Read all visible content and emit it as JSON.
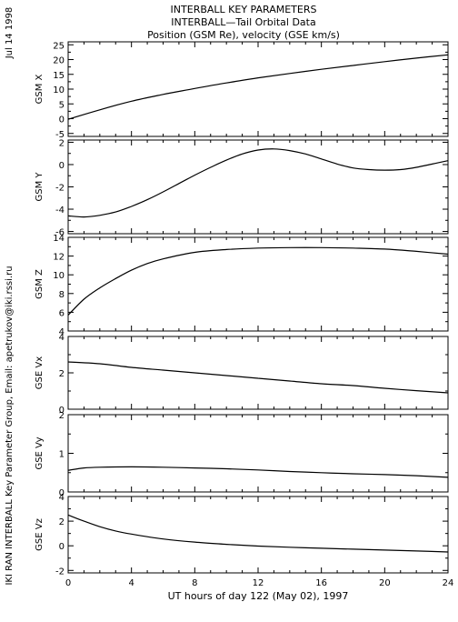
{
  "header": {
    "title": "INTERBALL KEY PARAMETERS",
    "subtitle": "INTERBALL—Tail Orbital Data",
    "subtitle2": "Position (GSM Re), velocity (GSE km/s)"
  },
  "side": {
    "date": "Jul 14 1998",
    "credit": "IKI RAN INTERBALL Key Parameter Group, Email: apetrukov@iki.rssi.ru"
  },
  "chart_data": {
    "type": "line",
    "xlabel": "UT hours of day 122 (May 02), 1997",
    "xlim": [
      0,
      24
    ],
    "xticks": [
      0,
      4,
      8,
      12,
      16,
      20,
      24
    ],
    "grid": false,
    "panels": [
      {
        "ylabel": "GSM X",
        "ylim": [
          -6,
          26
        ],
        "yticks": [
          -5,
          0,
          5,
          10,
          15,
          20,
          25
        ],
        "x": [
          0,
          2,
          4,
          6,
          8,
          10,
          12,
          14,
          16,
          18,
          20,
          22,
          24
        ],
        "y": [
          -0.2,
          3.0,
          5.9,
          8.2,
          10.2,
          12.1,
          13.8,
          15.3,
          16.7,
          18.0,
          19.3,
          20.5,
          21.6
        ]
      },
      {
        "ylabel": "GSM Y",
        "ylim": [
          -6.2,
          2.2
        ],
        "yticks": [
          -6,
          -4,
          -2,
          0,
          2
        ],
        "x": [
          0,
          1,
          2,
          3,
          4,
          5,
          6,
          7,
          8,
          9,
          10,
          11,
          12,
          13,
          14,
          15,
          16,
          17,
          18,
          19,
          20,
          21,
          22,
          23,
          24
        ],
        "y": [
          -4.6,
          -4.7,
          -4.55,
          -4.25,
          -3.75,
          -3.15,
          -2.45,
          -1.7,
          -0.95,
          -0.25,
          0.4,
          0.95,
          1.3,
          1.4,
          1.25,
          0.95,
          0.5,
          0.05,
          -0.3,
          -0.45,
          -0.5,
          -0.45,
          -0.25,
          0.05,
          0.35
        ]
      },
      {
        "ylabel": "GSM Z",
        "ylim": [
          4,
          14
        ],
        "yticks": [
          4,
          6,
          8,
          10,
          12,
          14
        ],
        "x": [
          0,
          1,
          2,
          3,
          4,
          5,
          6,
          8,
          10,
          12,
          14,
          16,
          18,
          20,
          22,
          24
        ],
        "y": [
          5.7,
          7.4,
          8.6,
          9.6,
          10.5,
          11.2,
          11.7,
          12.4,
          12.7,
          12.85,
          12.9,
          12.9,
          12.85,
          12.75,
          12.5,
          12.2
        ]
      },
      {
        "ylabel": "GSE Vx",
        "ylim": [
          0,
          4
        ],
        "yticks": [
          0,
          2,
          4
        ],
        "x": [
          0,
          2,
          4,
          6,
          8,
          10,
          12,
          14,
          16,
          18,
          20,
          22,
          24
        ],
        "y": [
          2.6,
          2.5,
          2.3,
          2.15,
          2.0,
          1.85,
          1.7,
          1.55,
          1.4,
          1.3,
          1.15,
          1.02,
          0.9
        ]
      },
      {
        "ylabel": "GSE Vy",
        "ylim": [
          0,
          2
        ],
        "yticks": [
          0,
          1,
          2
        ],
        "x": [
          0,
          1,
          2,
          4,
          6,
          8,
          10,
          12,
          14,
          16,
          18,
          20,
          22,
          24
        ],
        "y": [
          0.56,
          0.62,
          0.64,
          0.65,
          0.64,
          0.62,
          0.6,
          0.57,
          0.53,
          0.5,
          0.47,
          0.45,
          0.42,
          0.38
        ]
      },
      {
        "ylabel": "GSE Vz",
        "ylim": [
          -2.2,
          4
        ],
        "yticks": [
          -2,
          0,
          2,
          4
        ],
        "x": [
          0,
          1,
          2,
          3,
          4,
          6,
          8,
          10,
          12,
          14,
          16,
          18,
          20,
          22,
          24
        ],
        "y": [
          2.5,
          2.0,
          1.55,
          1.2,
          0.95,
          0.55,
          0.3,
          0.12,
          -0.02,
          -0.12,
          -0.2,
          -0.27,
          -0.35,
          -0.42,
          -0.5
        ]
      }
    ]
  }
}
